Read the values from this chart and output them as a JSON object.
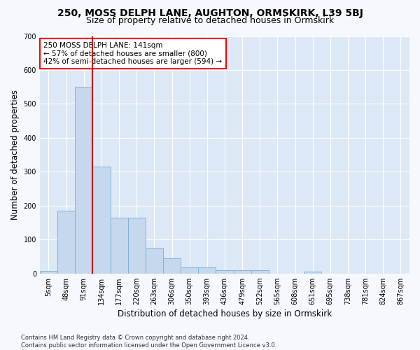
{
  "title": "250, MOSS DELPH LANE, AUGHTON, ORMSKIRK, L39 5BJ",
  "subtitle": "Size of property relative to detached houses in Ormskirk",
  "xlabel": "Distribution of detached houses by size in Ormskirk",
  "ylabel": "Number of detached properties",
  "bar_color": "#c5d8ee",
  "bar_edgecolor": "#7aaed4",
  "plot_bg_color": "#dce8f5",
  "fig_bg_color": "#f5f8fd",
  "grid_color": "#ffffff",
  "bins": [
    "5sqm",
    "48sqm",
    "91sqm",
    "134sqm",
    "177sqm",
    "220sqm",
    "263sqm",
    "306sqm",
    "350sqm",
    "393sqm",
    "436sqm",
    "479sqm",
    "522sqm",
    "565sqm",
    "608sqm",
    "651sqm",
    "695sqm",
    "738sqm",
    "781sqm",
    "824sqm",
    "867sqm"
  ],
  "values": [
    8,
    185,
    550,
    315,
    165,
    165,
    76,
    45,
    18,
    18,
    10,
    10,
    10,
    0,
    0,
    5,
    0,
    0,
    0,
    0,
    0
  ],
  "vline_color": "#cc0000",
  "annotation_text": "250 MOSS DELPH LANE: 141sqm\n← 57% of detached houses are smaller (800)\n42% of semi-detached houses are larger (594) →",
  "ylim": [
    0,
    700
  ],
  "yticks": [
    0,
    100,
    200,
    300,
    400,
    500,
    600,
    700
  ],
  "footer": "Contains HM Land Registry data © Crown copyright and database right 2024.\nContains public sector information licensed under the Open Government Licence v3.0.",
  "title_fontsize": 10,
  "subtitle_fontsize": 9,
  "axis_label_fontsize": 8.5,
  "tick_fontsize": 7,
  "annotation_fontsize": 7.5,
  "footer_fontsize": 6
}
